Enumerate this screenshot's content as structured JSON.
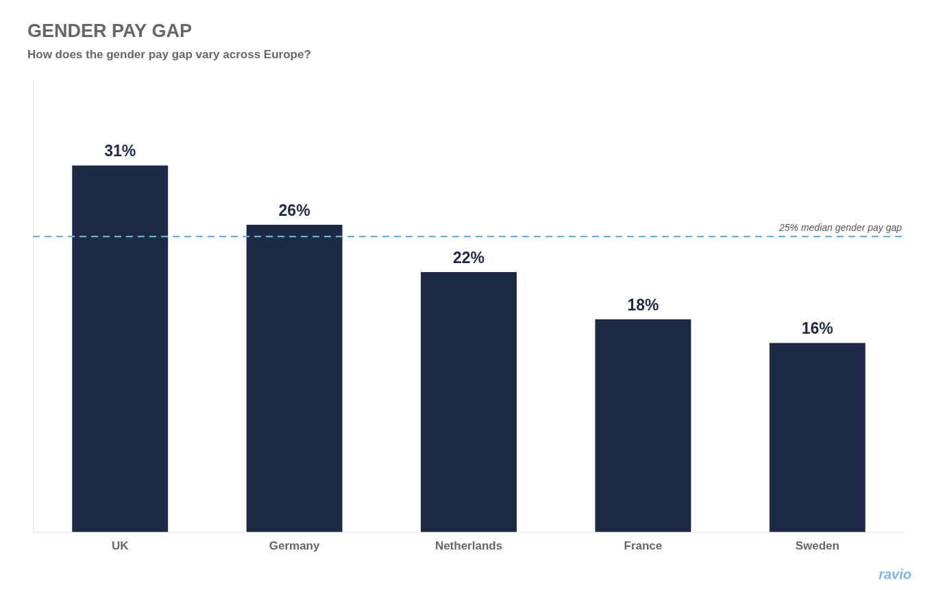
{
  "chart_data": {
    "type": "bar",
    "title": "GENDER PAY GAP",
    "subtitle": "How does the gender pay gap vary across Europe?",
    "categories": [
      "UK",
      "Germany",
      "Netherlands",
      "France",
      "Sweden"
    ],
    "values": [
      31,
      26,
      22,
      18,
      16
    ],
    "value_labels": [
      "31%",
      "26%",
      "22%",
      "18%",
      "16%"
    ],
    "data_labels": true,
    "color": "#1e2a45",
    "ylim": [
      0,
      38
    ],
    "grid": false,
    "legend": false,
    "tick_labels": "x",
    "annotations": [
      {
        "y": 25,
        "text": "25% median gender pay gap",
        "color": "#6ab0d4",
        "line_style": "dashed"
      },
      {
        "text": "ravio"
      }
    ]
  }
}
